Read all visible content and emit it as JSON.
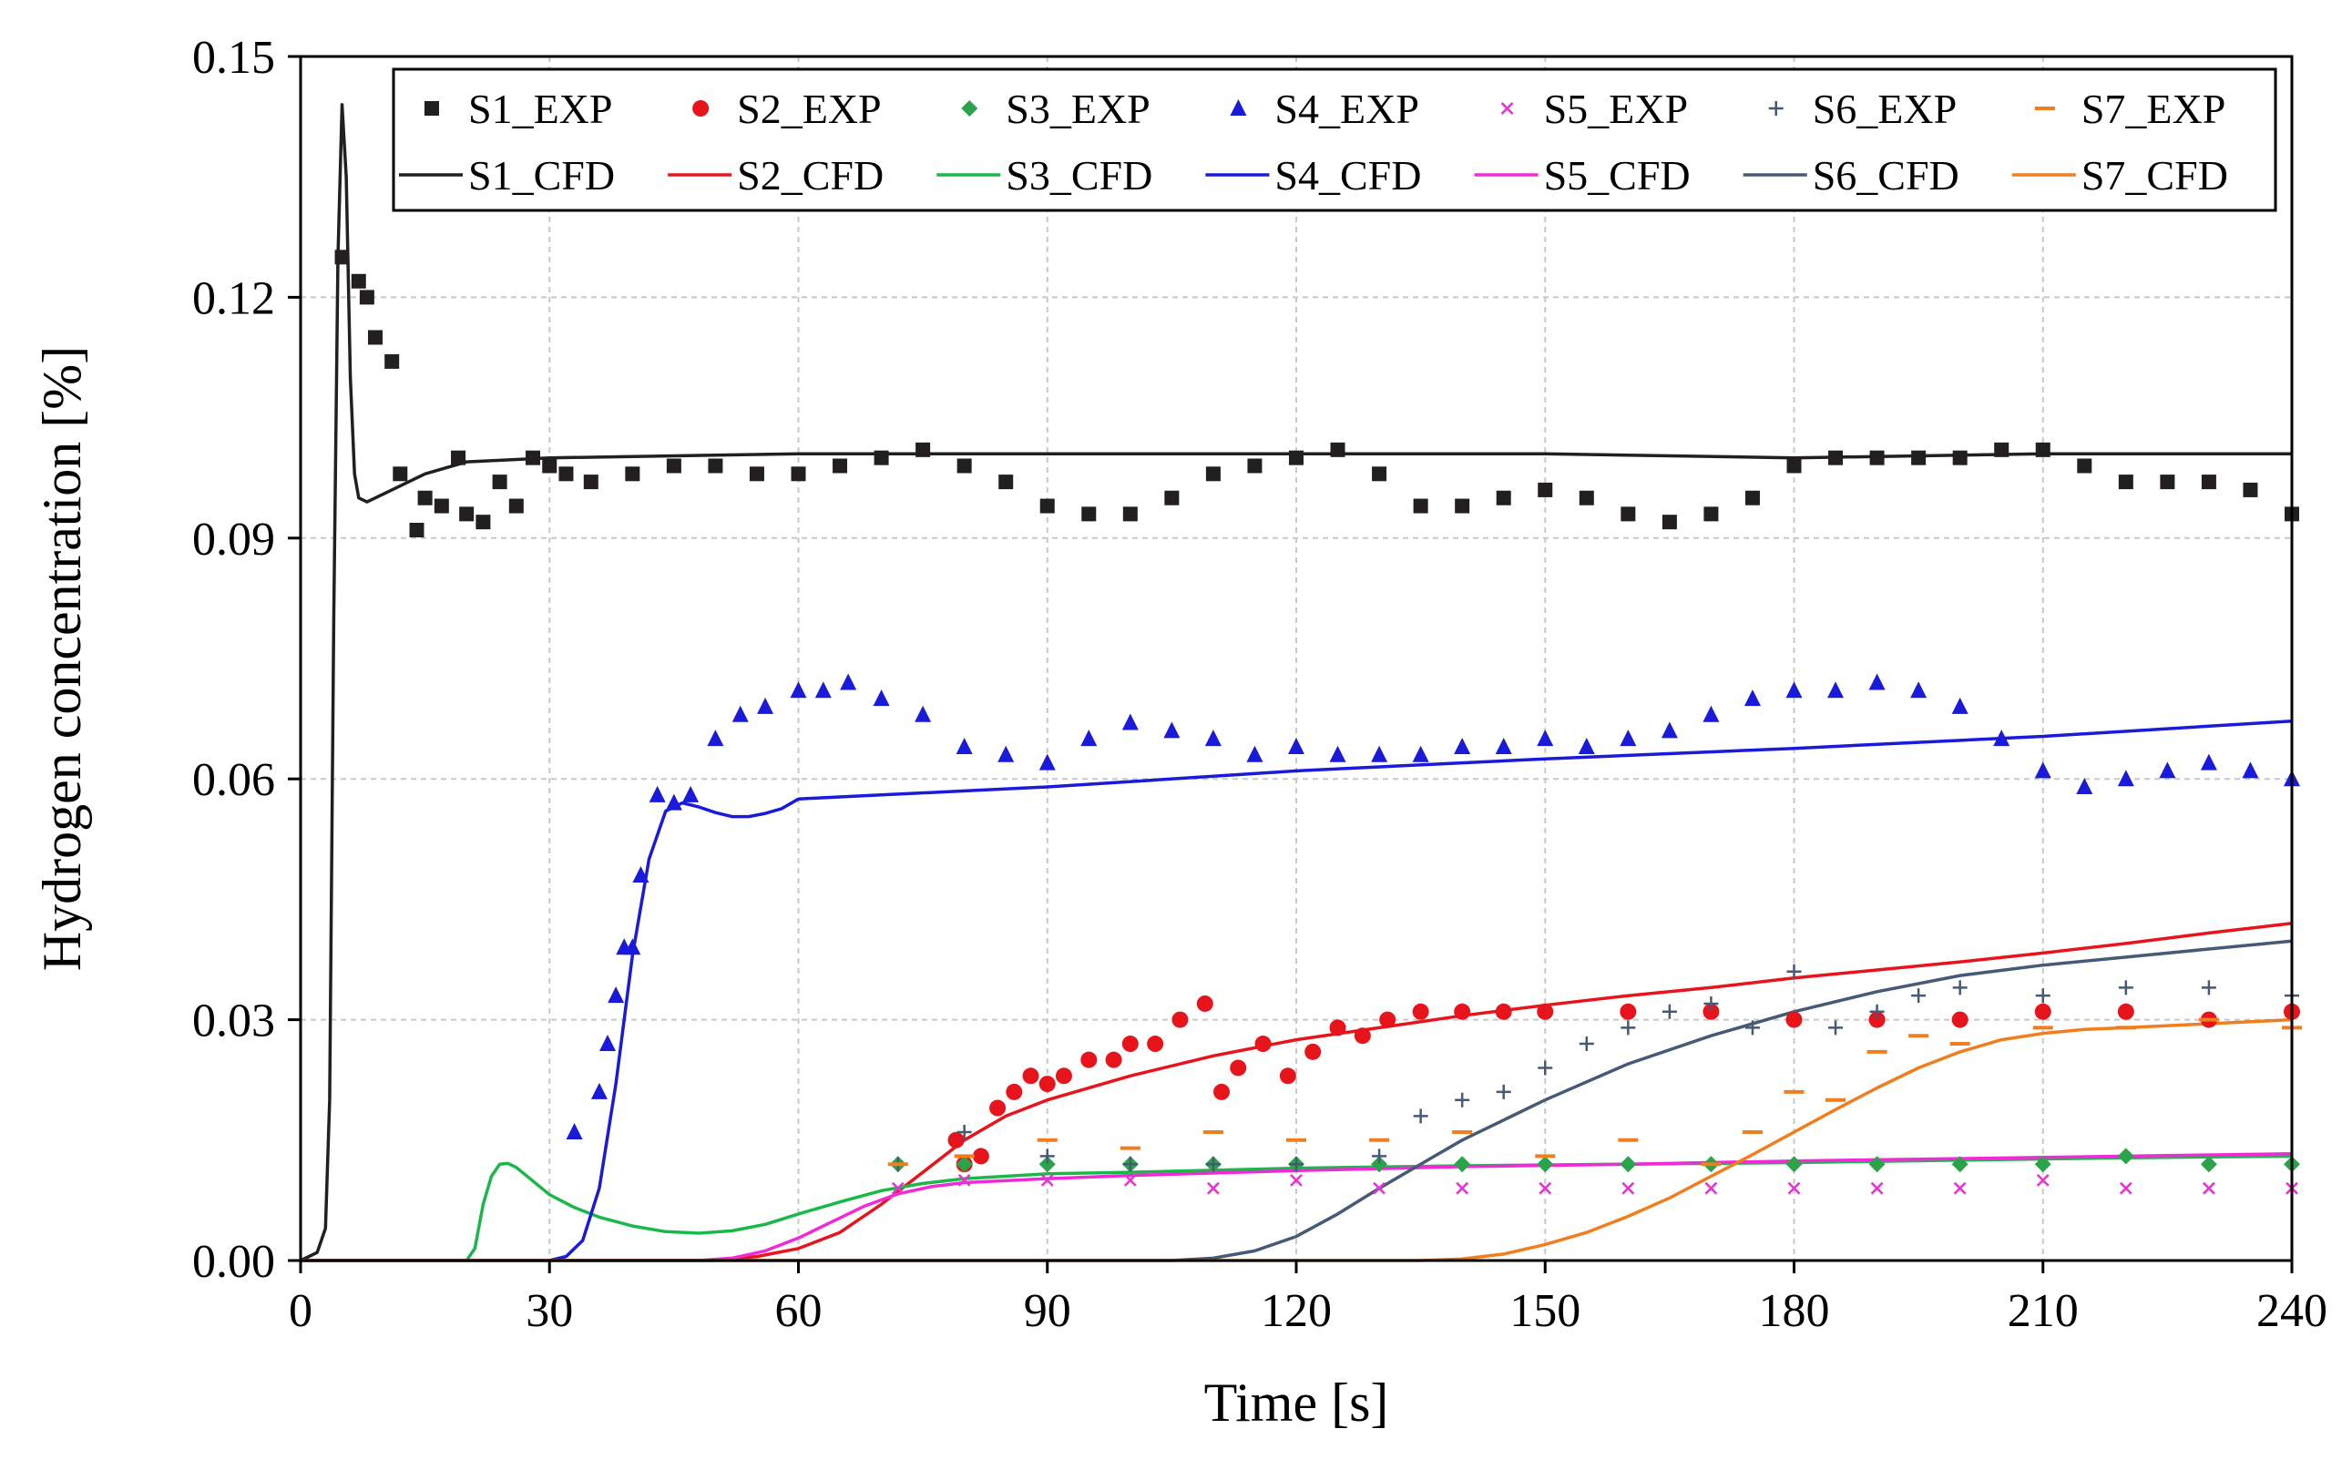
{
  "chart_data": {
    "type": "line",
    "title": "",
    "xlabel": "Time [s]",
    "ylabel": "Hydrogen concentration [%]",
    "xlim": [
      0,
      240
    ],
    "ylim": [
      0,
      0.15
    ],
    "x_ticks": [
      0,
      30,
      60,
      90,
      120,
      150,
      180,
      210,
      240
    ],
    "x_tick_labels": [
      "0",
      "30",
      "60",
      "90",
      "120",
      "150",
      "180",
      "210",
      "240"
    ],
    "y_ticks": [
      0,
      0.03,
      0.06,
      0.09,
      0.12,
      0.15
    ],
    "y_tick_labels": [
      "0.00",
      "0.03",
      "0.06",
      "0.09",
      "0.12",
      "0.15"
    ],
    "grid": true,
    "legend_position": "top-right",
    "experimental": [
      {
        "name": "S1_EXP",
        "color": "#231f20",
        "marker": "square",
        "x": [
          5,
          7,
          8,
          9,
          11,
          12,
          14,
          15,
          17,
          19,
          20,
          22,
          24,
          26,
          28,
          30,
          32,
          35,
          40,
          45,
          50,
          55,
          60,
          65,
          70,
          75,
          80,
          85,
          90,
          95,
          100,
          105,
          110,
          115,
          120,
          125,
          130,
          135,
          140,
          145,
          150,
          155,
          160,
          165,
          170,
          175,
          180,
          185,
          190,
          195,
          200,
          205,
          210,
          215,
          220,
          225,
          230,
          235,
          240
        ],
        "y": [
          0.125,
          0.122,
          0.12,
          0.115,
          0.112,
          0.098,
          0.091,
          0.095,
          0.094,
          0.1,
          0.093,
          0.092,
          0.097,
          0.094,
          0.1,
          0.099,
          0.098,
          0.097,
          0.098,
          0.099,
          0.099,
          0.098,
          0.098,
          0.099,
          0.1,
          0.101,
          0.099,
          0.097,
          0.094,
          0.093,
          0.093,
          0.095,
          0.098,
          0.099,
          0.1,
          0.101,
          0.098,
          0.094,
          0.094,
          0.095,
          0.096,
          0.095,
          0.093,
          0.092,
          0.093,
          0.095,
          0.099,
          0.1,
          0.1,
          0.1,
          0.1,
          0.101,
          0.101,
          0.099,
          0.097,
          0.097,
          0.097,
          0.096,
          0.093
        ]
      },
      {
        "name": "S2_EXP",
        "color": "#e8141c",
        "marker": "circle",
        "x": [
          79,
          80,
          82,
          84,
          86,
          88,
          90,
          92,
          95,
          98,
          100,
          103,
          106,
          109,
          111,
          113,
          116,
          119,
          122,
          125,
          128,
          131,
          135,
          140,
          145,
          150,
          160,
          170,
          180,
          190,
          200,
          210,
          220,
          230,
          240
        ],
        "y": [
          0.015,
          0.012,
          0.013,
          0.019,
          0.021,
          0.023,
          0.022,
          0.023,
          0.025,
          0.025,
          0.027,
          0.027,
          0.03,
          0.032,
          0.021,
          0.024,
          0.027,
          0.023,
          0.026,
          0.029,
          0.028,
          0.03,
          0.031,
          0.031,
          0.031,
          0.031,
          0.031,
          0.031,
          0.03,
          0.03,
          0.03,
          0.031,
          0.031,
          0.03,
          0.031
        ]
      },
      {
        "name": "S3_EXP",
        "color": "#2ba34a",
        "marker": "diamond",
        "x": [
          72,
          80,
          90,
          100,
          110,
          120,
          130,
          140,
          150,
          160,
          170,
          180,
          190,
          200,
          210,
          220,
          230,
          240
        ],
        "y": [
          0.012,
          0.012,
          0.012,
          0.012,
          0.012,
          0.012,
          0.012,
          0.012,
          0.012,
          0.012,
          0.012,
          0.012,
          0.012,
          0.012,
          0.012,
          0.013,
          0.012,
          0.012
        ]
      },
      {
        "name": "S4_EXP",
        "color": "#1a1adb",
        "marker": "triangle",
        "x": [
          33,
          36,
          37,
          38,
          39,
          40,
          41,
          43,
          45,
          47,
          50,
          53,
          56,
          60,
          63,
          66,
          70,
          75,
          80,
          85,
          90,
          95,
          100,
          105,
          110,
          115,
          120,
          125,
          130,
          135,
          140,
          145,
          150,
          155,
          160,
          165,
          170,
          175,
          180,
          185,
          190,
          195,
          200,
          205,
          210,
          215,
          220,
          225,
          230,
          235,
          240
        ],
        "y": [
          0.016,
          0.021,
          0.027,
          0.033,
          0.039,
          0.039,
          0.048,
          0.058,
          0.057,
          0.058,
          0.065,
          0.068,
          0.069,
          0.071,
          0.071,
          0.072,
          0.07,
          0.068,
          0.064,
          0.063,
          0.062,
          0.065,
          0.067,
          0.066,
          0.065,
          0.063,
          0.064,
          0.063,
          0.063,
          0.063,
          0.064,
          0.064,
          0.065,
          0.064,
          0.065,
          0.066,
          0.068,
          0.07,
          0.071,
          0.071,
          0.072,
          0.071,
          0.069,
          0.065,
          0.061,
          0.059,
          0.06,
          0.061,
          0.062,
          0.061,
          0.06
        ]
      },
      {
        "name": "S5_EXP",
        "color": "#e832d6",
        "marker": "x",
        "x": [
          72,
          80,
          90,
          100,
          110,
          120,
          130,
          140,
          150,
          160,
          170,
          180,
          190,
          200,
          210,
          220,
          230,
          240
        ],
        "y": [
          0.009,
          0.01,
          0.01,
          0.01,
          0.009,
          0.01,
          0.009,
          0.009,
          0.009,
          0.009,
          0.009,
          0.009,
          0.009,
          0.009,
          0.01,
          0.009,
          0.009,
          0.009
        ]
      },
      {
        "name": "S6_EXP",
        "color": "#475a75",
        "marker": "plus",
        "x": [
          72,
          80,
          90,
          100,
          110,
          120,
          130,
          135,
          140,
          145,
          150,
          155,
          160,
          165,
          170,
          175,
          180,
          185,
          190,
          195,
          200,
          210,
          220,
          230,
          240
        ],
        "y": [
          0.012,
          0.016,
          0.013,
          0.012,
          0.012,
          0.012,
          0.013,
          0.018,
          0.02,
          0.021,
          0.024,
          0.027,
          0.029,
          0.031,
          0.032,
          0.029,
          0.036,
          0.029,
          0.031,
          0.033,
          0.034,
          0.033,
          0.034,
          0.034,
          0.033
        ]
      },
      {
        "name": "S7_EXP",
        "color": "#f07d1e",
        "marker": "dash",
        "x": [
          72,
          80,
          90,
          100,
          110,
          120,
          130,
          140,
          150,
          160,
          170,
          175,
          180,
          185,
          190,
          195,
          200,
          210,
          220,
          230,
          240
        ],
        "y": [
          0.012,
          0.013,
          0.015,
          0.014,
          0.016,
          0.015,
          0.015,
          0.016,
          0.013,
          0.015,
          0.012,
          0.016,
          0.021,
          0.02,
          0.026,
          0.028,
          0.027,
          0.029,
          0.029,
          0.03,
          0.029
        ]
      }
    ],
    "cfd": [
      {
        "name": "S1_CFD",
        "color": "#231f20",
        "x": [
          0,
          2,
          3,
          3.5,
          4,
          4.5,
          5,
          5.5,
          6,
          6.5,
          7,
          8,
          10,
          15,
          20,
          30,
          60,
          90,
          120,
          150,
          180,
          210,
          240
        ],
        "y": [
          0,
          0.001,
          0.004,
          0.02,
          0.08,
          0.125,
          0.144,
          0.135,
          0.11,
          0.098,
          0.095,
          0.0945,
          0.0955,
          0.098,
          0.0995,
          0.1,
          0.1005,
          0.1005,
          0.1005,
          0.1005,
          0.1,
          0.1005,
          0.1005
        ]
      },
      {
        "name": "S2_CFD",
        "color": "#e8141c",
        "x": [
          0,
          50,
          55,
          60,
          65,
          70,
          75,
          80,
          85,
          90,
          100,
          110,
          120,
          130,
          140,
          150,
          160,
          170,
          180,
          190,
          200,
          210,
          220,
          230,
          240
        ],
        "y": [
          0,
          0,
          0.0005,
          0.0015,
          0.0035,
          0.007,
          0.011,
          0.015,
          0.018,
          0.02,
          0.023,
          0.0255,
          0.0275,
          0.029,
          0.0305,
          0.0318,
          0.033,
          0.034,
          0.0352,
          0.0362,
          0.0372,
          0.0383,
          0.0395,
          0.0408,
          0.042
        ]
      },
      {
        "name": "S3_CFD",
        "color": "#1ab84a",
        "x": [
          0,
          20,
          21,
          22,
          23,
          24,
          25,
          26,
          28,
          30,
          33,
          36,
          40,
          44,
          48,
          52,
          56,
          60,
          65,
          70,
          75,
          80,
          90,
          100,
          120,
          140,
          160,
          180,
          200,
          220,
          240
        ],
        "y": [
          0,
          0,
          0.0015,
          0.007,
          0.0105,
          0.012,
          0.0121,
          0.0116,
          0.0099,
          0.0082,
          0.0066,
          0.0054,
          0.0043,
          0.0036,
          0.0034,
          0.0037,
          0.0045,
          0.0058,
          0.0073,
          0.0087,
          0.0096,
          0.0102,
          0.0108,
          0.011,
          0.0115,
          0.0118,
          0.012,
          0.0122,
          0.0125,
          0.0128,
          0.013
        ]
      },
      {
        "name": "S4_CFD",
        "color": "#1a1adb",
        "x": [
          0,
          30,
          32,
          34,
          36,
          38,
          40,
          42,
          44,
          46,
          48,
          50,
          52,
          54,
          56,
          58,
          60,
          70,
          80,
          90,
          120,
          150,
          180,
          210,
          240
        ],
        "y": [
          0,
          0,
          0.0005,
          0.0025,
          0.009,
          0.022,
          0.038,
          0.05,
          0.056,
          0.057,
          0.0565,
          0.0558,
          0.0553,
          0.0553,
          0.0557,
          0.0563,
          0.0575,
          0.058,
          0.0585,
          0.059,
          0.061,
          0.0625,
          0.0638,
          0.0653,
          0.0672
        ]
      },
      {
        "name": "S5_CFD",
        "color": "#f02ad6",
        "x": [
          0,
          48,
          52,
          56,
          60,
          64,
          68,
          72,
          76,
          80,
          90,
          100,
          120,
          140,
          160,
          180,
          200,
          220,
          240
        ],
        "y": [
          0,
          0,
          0.0003,
          0.0012,
          0.0028,
          0.0048,
          0.0068,
          0.0083,
          0.0092,
          0.0097,
          0.0102,
          0.0106,
          0.0112,
          0.0117,
          0.012,
          0.0124,
          0.0127,
          0.013,
          0.0133
        ]
      },
      {
        "name": "S6_CFD",
        "color": "#475a75",
        "x": [
          0,
          105,
          110,
          115,
          120,
          125,
          130,
          135,
          140,
          150,
          160,
          170,
          180,
          190,
          200,
          210,
          220,
          230,
          240
        ],
        "y": [
          0,
          0,
          0.0003,
          0.0012,
          0.003,
          0.0058,
          0.009,
          0.012,
          0.015,
          0.02,
          0.0245,
          0.028,
          0.031,
          0.0335,
          0.0355,
          0.0368,
          0.0378,
          0.0388,
          0.0398
        ]
      },
      {
        "name": "S7_CFD",
        "color": "#f07d1e",
        "x": [
          0,
          135,
          140,
          145,
          150,
          155,
          160,
          165,
          170,
          175,
          180,
          185,
          190,
          195,
          200,
          205,
          210,
          215,
          220,
          230,
          240
        ],
        "y": [
          0,
          0,
          0.0002,
          0.0008,
          0.002,
          0.0035,
          0.0055,
          0.0078,
          0.0105,
          0.0132,
          0.016,
          0.0188,
          0.0215,
          0.024,
          0.026,
          0.0275,
          0.0283,
          0.0288,
          0.029,
          0.0295,
          0.03
        ]
      }
    ]
  }
}
